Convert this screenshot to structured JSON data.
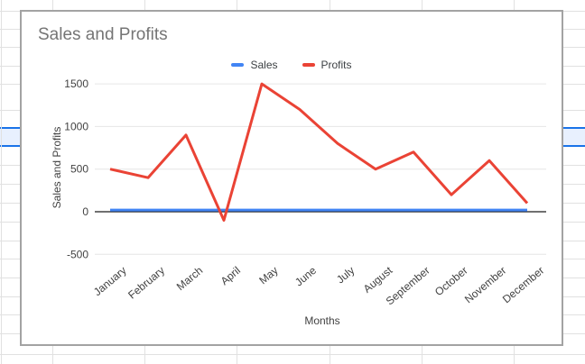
{
  "spreadsheet": {
    "gridline_color": "#e1e1e1",
    "selected_row_fill": "#e8f0fe",
    "selected_row_border": "#1a73e8"
  },
  "chart": {
    "title_color": "#757575",
    "axis_text_color": "#424242",
    "plot_gridline_color": "#e6e6e6",
    "zero_axis_color": "#1a1a1a",
    "card_background": "#ffffff"
  },
  "chart_data": {
    "type": "line",
    "title": "Sales and Profits",
    "xlabel": "Months",
    "ylabel": "Sales and Profits",
    "categories": [
      "January",
      "February",
      "March",
      "April",
      "May",
      "June",
      "July",
      "August",
      "September",
      "October",
      "November",
      "December"
    ],
    "series": [
      {
        "name": "Sales",
        "color": "#4285f4",
        "values": [
          20,
          20,
          20,
          20,
          20,
          20,
          20,
          20,
          20,
          20,
          20,
          20
        ]
      },
      {
        "name": "Profits",
        "color": "#ea4335",
        "values": [
          500,
          400,
          900,
          -100,
          1500,
          1200,
          800,
          500,
          700,
          200,
          600,
          100
        ]
      }
    ],
    "ylim": [
      -500,
      1500
    ],
    "yticks": [
      -500,
      0,
      500,
      1000,
      1500
    ],
    "grid": true,
    "legend_position": "top"
  }
}
